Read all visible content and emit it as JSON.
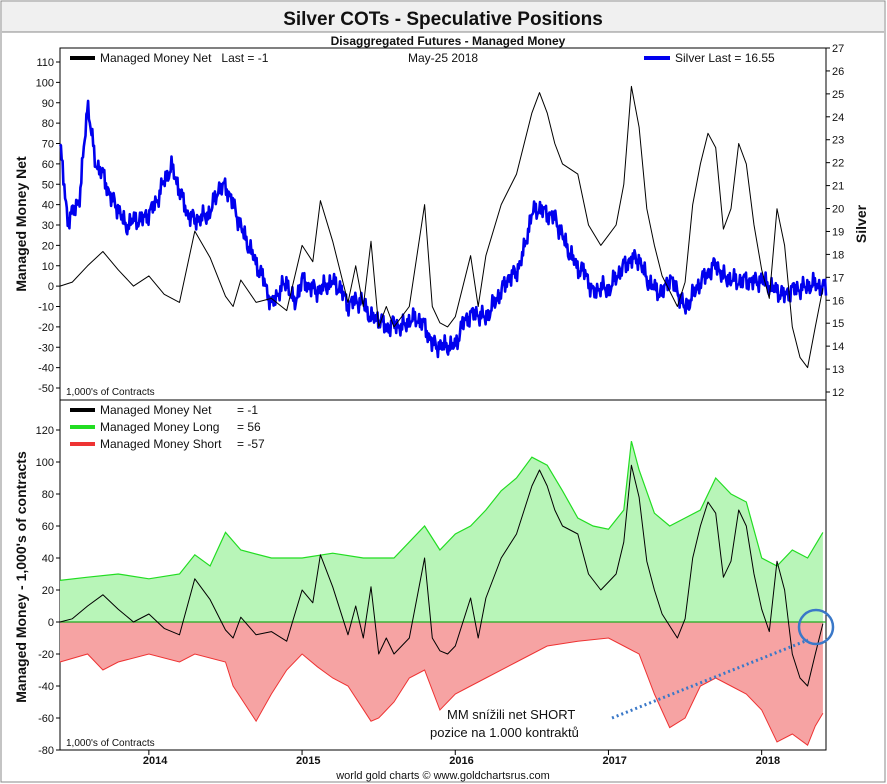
{
  "header": {
    "title": "Silver COTs - Speculative Positions",
    "subtitle": "Disaggregated Futures - Managed Money",
    "footer": "world gold charts © www.goldchartsrus.com"
  },
  "colors": {
    "title_bg": "#f0f0f0",
    "net": "#000000",
    "silver": "#0000ee",
    "long": "#22dd22",
    "long_fill": "#b8f5b8",
    "short": "#ee3333",
    "short_fill": "#f6a3a3",
    "annotation": "#3a78c8"
  },
  "chart_data": [
    {
      "type": "line",
      "ylabel": "Managed Money Net",
      "y2label": "Silver",
      "units_note": "1,000's of Contracts",
      "date_label": "May-25  2018",
      "ylim": [
        -50,
        110
      ],
      "y2lim": [
        12,
        27
      ],
      "yticks": [
        -50,
        -40,
        -30,
        -20,
        -10,
        0,
        10,
        20,
        30,
        40,
        50,
        60,
        70,
        80,
        90,
        100,
        110
      ],
      "y2ticks": [
        12,
        13,
        14,
        15,
        16,
        17,
        18,
        19,
        20,
        21,
        22,
        23,
        24,
        25,
        26,
        27
      ],
      "legend": [
        {
          "label": "Managed Money Net   Last = -1",
          "color": "#000000"
        },
        {
          "label": "Silver Last = 16.55",
          "color": "#0000ee"
        }
      ],
      "series": [
        {
          "name": "Managed Money Net",
          "axis": "left",
          "x": [
            2013.42,
            2013.5,
            2013.6,
            2013.7,
            2013.8,
            2013.9,
            2014.0,
            2014.1,
            2014.2,
            2014.3,
            2014.4,
            2014.5,
            2014.55,
            2014.6,
            2014.7,
            2014.8,
            2014.9,
            2015.0,
            2015.07,
            2015.12,
            2015.2,
            2015.3,
            2015.35,
            2015.4,
            2015.45,
            2015.5,
            2015.55,
            2015.6,
            2015.7,
            2015.8,
            2015.85,
            2015.9,
            2015.95,
            2016.0,
            2016.1,
            2016.15,
            2016.2,
            2016.3,
            2016.4,
            2016.45,
            2016.5,
            2016.55,
            2016.6,
            2016.65,
            2016.7,
            2016.8,
            2016.87,
            2016.95,
            2017.0,
            2017.05,
            2017.1,
            2017.15,
            2017.2,
            2017.25,
            2017.3,
            2017.35,
            2017.45,
            2017.5,
            2017.55,
            2017.6,
            2017.65,
            2017.7,
            2017.75,
            2017.8,
            2017.85,
            2017.9,
            2017.95,
            2018.0,
            2018.05,
            2018.1,
            2018.15,
            2018.2,
            2018.25,
            2018.3,
            2018.35,
            2018.4
          ],
          "y": [
            0,
            2,
            10,
            17,
            8,
            0,
            5,
            -4,
            -8,
            27,
            14,
            -5,
            -10,
            3,
            -8,
            -6,
            -12,
            20,
            12,
            42,
            22,
            -8,
            10,
            -10,
            22,
            -20,
            -10,
            -20,
            -10,
            40,
            -10,
            -18,
            -20,
            -15,
            15,
            -10,
            15,
            40,
            55,
            70,
            85,
            95,
            85,
            70,
            60,
            55,
            30,
            20,
            25,
            30,
            50,
            98,
            78,
            38,
            20,
            5,
            -10,
            2,
            40,
            60,
            75,
            68,
            28,
            38,
            70,
            60,
            30,
            8,
            -6,
            38,
            20,
            -20,
            -35,
            -40,
            -20,
            -1
          ]
        },
        {
          "name": "Silver",
          "axis": "right",
          "x": [
            2013.42,
            2013.47,
            2013.5,
            2013.55,
            2013.6,
            2013.65,
            2013.7,
            2013.75,
            2013.8,
            2013.85,
            2013.9,
            2013.95,
            2014.0,
            2014.05,
            2014.1,
            2014.15,
            2014.2,
            2014.25,
            2014.3,
            2014.35,
            2014.4,
            2014.45,
            2014.5,
            2014.55,
            2014.6,
            2014.65,
            2014.7,
            2014.75,
            2014.8,
            2014.85,
            2014.9,
            2014.95,
            2015.0,
            2015.05,
            2015.1,
            2015.15,
            2015.2,
            2015.25,
            2015.3,
            2015.35,
            2015.4,
            2015.45,
            2015.5,
            2015.55,
            2015.6,
            2015.65,
            2015.7,
            2015.75,
            2015.8,
            2015.85,
            2015.9,
            2015.95,
            2016.0,
            2016.05,
            2016.1,
            2016.15,
            2016.2,
            2016.25,
            2016.3,
            2016.35,
            2016.4,
            2016.45,
            2016.5,
            2016.55,
            2016.6,
            2016.65,
            2016.7,
            2016.75,
            2016.8,
            2016.85,
            2016.9,
            2016.95,
            2017.0,
            2017.05,
            2017.1,
            2017.15,
            2017.2,
            2017.25,
            2017.3,
            2017.35,
            2017.4,
            2017.45,
            2017.5,
            2017.55,
            2017.6,
            2017.65,
            2017.7,
            2017.75,
            2017.8,
            2017.85,
            2017.9,
            2017.95,
            2018.0,
            2018.05,
            2018.1,
            2018.15,
            2018.2,
            2018.25,
            2018.3,
            2018.35,
            2018.4
          ],
          "y": [
            22.8,
            19.5,
            19.8,
            20.5,
            24.6,
            22.0,
            21.5,
            20.5,
            20.0,
            19.2,
            19.5,
            19.5,
            19.8,
            20.3,
            21.2,
            21.8,
            20.8,
            19.8,
            19.5,
            19.6,
            19.8,
            20.8,
            21.0,
            20.2,
            19.2,
            18.4,
            17.6,
            16.9,
            15.8,
            16.4,
            16.8,
            15.8,
            16.9,
            16.6,
            16.4,
            16.6,
            16.8,
            16.5,
            15.8,
            16.0,
            15.9,
            15.2,
            15.2,
            14.8,
            15.0,
            14.8,
            15.1,
            15.2,
            14.9,
            14.1,
            14.0,
            14.0,
            14.0,
            15.0,
            15.4,
            15.4,
            15.2,
            15.8,
            16.4,
            17.0,
            17.2,
            18.2,
            19.8,
            20.0,
            19.8,
            19.6,
            18.8,
            18.0,
            17.4,
            17.2,
            16.3,
            16.6,
            16.4,
            17.0,
            17.5,
            17.8,
            17.8,
            16.9,
            16.5,
            16.3,
            17.0,
            16.4,
            15.6,
            16.2,
            16.8,
            17.2,
            17.6,
            17.0,
            16.9,
            16.8,
            16.9,
            16.8,
            16.9,
            16.6,
            16.4,
            16.2,
            16.5,
            16.5,
            16.6,
            16.7,
            16.55
          ]
        }
      ]
    },
    {
      "type": "area",
      "ylabel": "Managed Money - 1,000's of contracts",
      "units_note": "1,000's of Contracts",
      "ylim": [
        -80,
        130
      ],
      "yticks": [
        -80,
        -60,
        -40,
        -20,
        0,
        20,
        40,
        60,
        80,
        100,
        120
      ],
      "xticks": [
        "2014",
        "2015",
        "2016",
        "2017",
        "2018"
      ],
      "xtick_years": [
        2014,
        2015,
        2016,
        2017,
        2018
      ],
      "xlim": [
        2013.42,
        2018.42
      ],
      "legend": [
        {
          "label": "Managed Money Net",
          "value": "= -1",
          "color": "#000000"
        },
        {
          "label": "Managed Money Long",
          "value": "= 56",
          "color": "#22dd22"
        },
        {
          "label": "Managed Money Short",
          "value": "= -57",
          "color": "#ee3333"
        }
      ],
      "series": [
        {
          "name": "Managed Money Long",
          "x": [
            2013.42,
            2013.6,
            2013.8,
            2014.0,
            2014.2,
            2014.3,
            2014.4,
            2014.5,
            2014.6,
            2014.8,
            2015.0,
            2015.2,
            2015.4,
            2015.6,
            2015.8,
            2015.9,
            2016.0,
            2016.1,
            2016.2,
            2016.3,
            2016.4,
            2016.5,
            2016.6,
            2016.7,
            2016.8,
            2016.9,
            2017.0,
            2017.1,
            2017.15,
            2017.2,
            2017.3,
            2017.4,
            2017.5,
            2017.6,
            2017.7,
            2017.8,
            2017.9,
            2018.0,
            2018.1,
            2018.2,
            2018.3,
            2018.4
          ],
          "y": [
            26,
            28,
            30,
            27,
            30,
            42,
            35,
            56,
            45,
            40,
            40,
            43,
            40,
            40,
            60,
            45,
            55,
            60,
            70,
            82,
            90,
            103,
            98,
            82,
            65,
            60,
            58,
            70,
            113,
            95,
            68,
            60,
            65,
            70,
            90,
            80,
            75,
            40,
            35,
            45,
            40,
            56
          ]
        },
        {
          "name": "Managed Money Short",
          "x": [
            2013.42,
            2013.6,
            2013.7,
            2013.8,
            2014.0,
            2014.2,
            2014.3,
            2014.5,
            2014.55,
            2014.7,
            2014.8,
            2014.9,
            2015.0,
            2015.1,
            2015.2,
            2015.3,
            2015.45,
            2015.5,
            2015.6,
            2015.7,
            2015.8,
            2015.9,
            2016.0,
            2016.1,
            2016.2,
            2016.4,
            2016.6,
            2016.8,
            2017.0,
            2017.1,
            2017.2,
            2017.3,
            2017.4,
            2017.5,
            2017.6,
            2017.7,
            2017.8,
            2017.9,
            2018.0,
            2018.1,
            2018.2,
            2018.3,
            2018.35,
            2018.4
          ],
          "y": [
            -25,
            -20,
            -30,
            -25,
            -20,
            -25,
            -20,
            -25,
            -40,
            -62,
            -45,
            -30,
            -20,
            -28,
            -35,
            -40,
            -62,
            -60,
            -50,
            -35,
            -30,
            -55,
            -45,
            -40,
            -35,
            -25,
            -15,
            -12,
            -10,
            -15,
            -20,
            -45,
            -66,
            -60,
            -40,
            -35,
            -40,
            -45,
            -55,
            -75,
            -70,
            -77,
            -65,
            -57
          ]
        },
        {
          "name": "Managed Money Net",
          "x": [
            2013.42,
            2013.5,
            2013.6,
            2013.7,
            2013.8,
            2013.9,
            2014.0,
            2014.1,
            2014.2,
            2014.3,
            2014.4,
            2014.5,
            2014.55,
            2014.6,
            2014.7,
            2014.8,
            2014.9,
            2015.0,
            2015.07,
            2015.12,
            2015.2,
            2015.3,
            2015.35,
            2015.4,
            2015.45,
            2015.5,
            2015.55,
            2015.6,
            2015.7,
            2015.8,
            2015.85,
            2015.9,
            2015.95,
            2016.0,
            2016.1,
            2016.15,
            2016.2,
            2016.3,
            2016.4,
            2016.45,
            2016.5,
            2016.55,
            2016.6,
            2016.65,
            2016.7,
            2016.8,
            2016.87,
            2016.95,
            2017.0,
            2017.05,
            2017.1,
            2017.15,
            2017.2,
            2017.25,
            2017.3,
            2017.35,
            2017.45,
            2017.5,
            2017.55,
            2017.6,
            2017.65,
            2017.7,
            2017.75,
            2017.8,
            2017.85,
            2017.9,
            2017.95,
            2018.0,
            2018.05,
            2018.1,
            2018.15,
            2018.2,
            2018.25,
            2018.3,
            2018.35,
            2018.4
          ],
          "y": [
            0,
            2,
            10,
            17,
            8,
            0,
            5,
            -4,
            -8,
            27,
            14,
            -5,
            -10,
            3,
            -8,
            -6,
            -12,
            20,
            12,
            42,
            22,
            -8,
            10,
            -10,
            22,
            -20,
            -10,
            -20,
            -10,
            40,
            -10,
            -18,
            -20,
            -15,
            15,
            -10,
            15,
            40,
            55,
            70,
            85,
            95,
            85,
            70,
            60,
            55,
            30,
            20,
            25,
            30,
            50,
            98,
            78,
            38,
            20,
            5,
            -10,
            2,
            40,
            60,
            75,
            68,
            28,
            38,
            70,
            60,
            30,
            8,
            -6,
            38,
            20,
            -20,
            -35,
            -40,
            -20,
            -1
          ]
        }
      ],
      "annotation": {
        "text_line1": "MM snížili net SHORT",
        "text_line2": "pozice na 1.000 kontraktů",
        "target_x": 2018.4,
        "target_y": 0
      }
    }
  ]
}
